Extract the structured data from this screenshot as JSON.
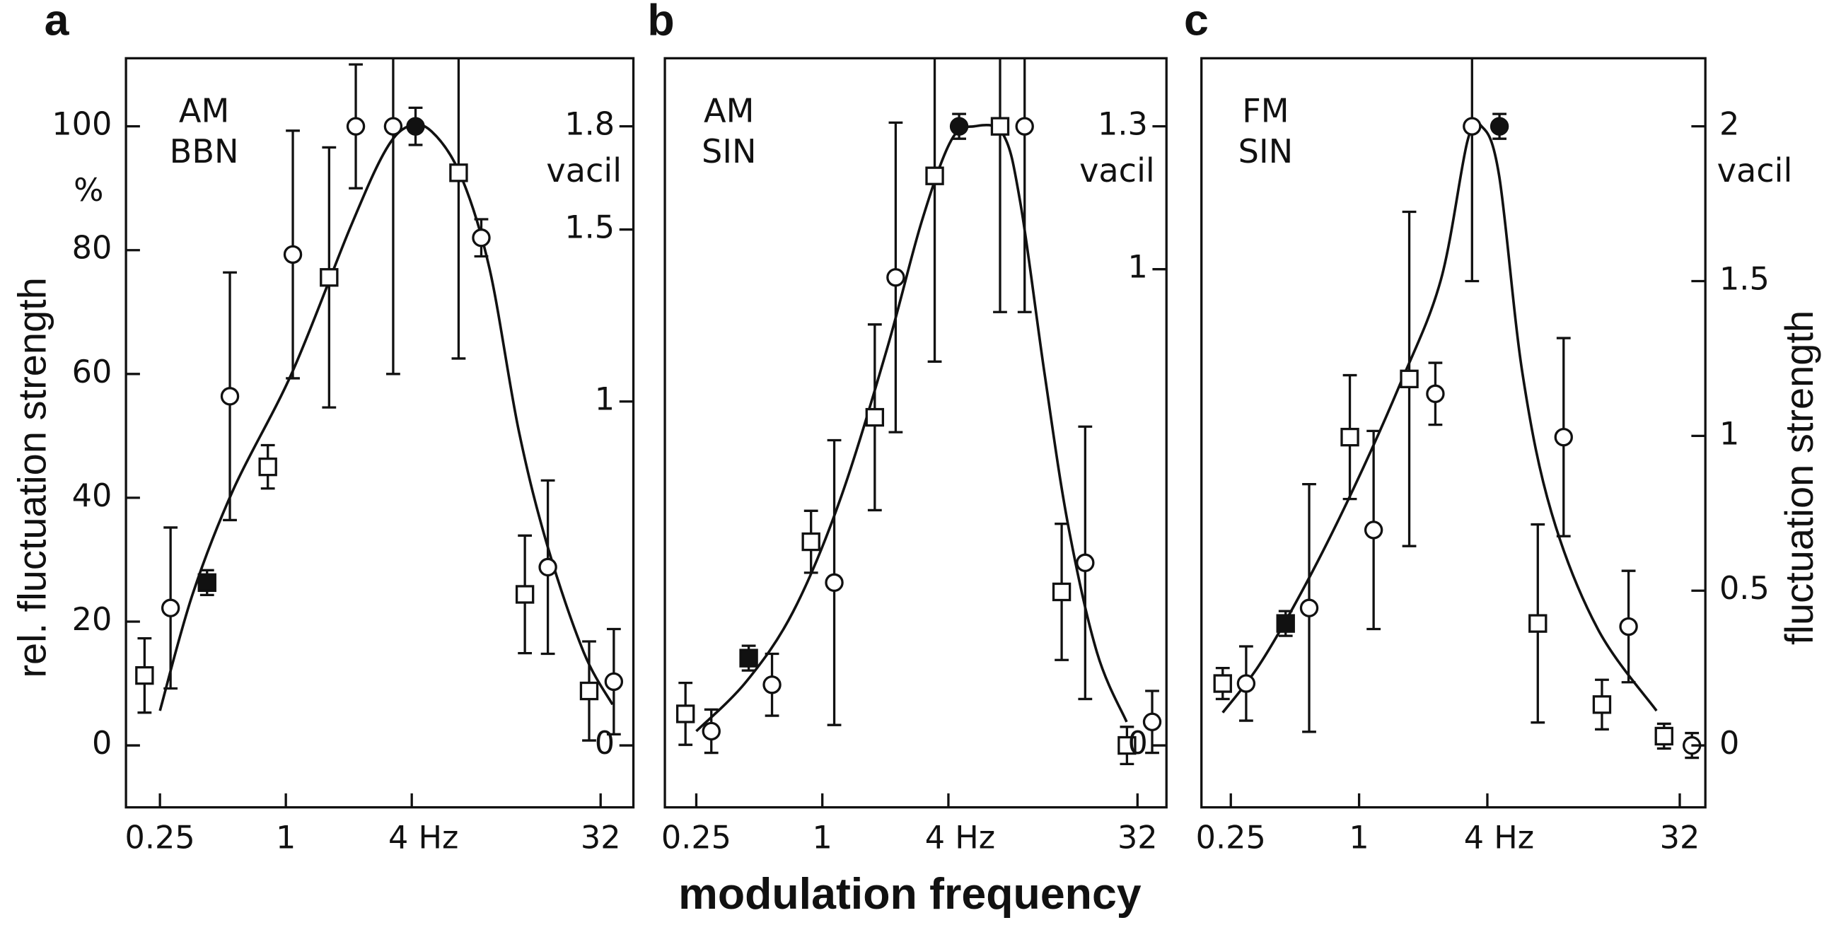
{
  "figure": {
    "ylabel": "rel. fluctuation strength",
    "yunit": "%",
    "y2label": "fluctuation strength",
    "xlabel": "modulation frequency"
  },
  "chart_data": [
    {
      "type": "scatter",
      "label": "a",
      "annotation": [
        "AM",
        "BBN"
      ],
      "xscale": "log",
      "color": "#111",
      "xlim": [
        0.172,
        45.9
      ],
      "ylim": [
        -10,
        111
      ],
      "y2lim": [
        -0.18,
        1.998
      ],
      "y2unit": "vacil",
      "xticks": [
        0.25,
        1,
        {
          "value": 4,
          "label": "4 Hz"
        },
        32
      ],
      "yticks": [
        0,
        20,
        40,
        60,
        80,
        100
      ],
      "y2ticks": [
        0,
        1,
        1.5,
        1.8
      ],
      "series": [
        {
          "marker": "circle",
          "filled": false,
          "x": [
            0.281,
            0.54,
            1.08,
            2.16,
            3.26,
            8.6,
            17.9,
            37
          ],
          "values": [
            22.2,
            56.4,
            79.3,
            100,
            100,
            82,
            28.8,
            10.3
          ],
          "errors": [
            13,
            20,
            20,
            10,
            40,
            3,
            14,
            8.5
          ]
        },
        {
          "marker": "square",
          "filled": false,
          "x": [
            0.211,
            0.82,
            1.61,
            6.7,
            13.9,
            28.2
          ],
          "values": [
            11.3,
            45,
            75.6,
            92.5,
            24.4,
            8.8
          ],
          "errors": [
            6,
            3.5,
            21,
            30,
            9.5,
            8
          ]
        },
        {
          "marker": "square",
          "filled": true,
          "x": [
            0.42
          ],
          "values": [
            26.3
          ],
          "errors": [
            2
          ]
        },
        {
          "marker": "circle",
          "filled": true,
          "x": [
            4.17
          ],
          "values": [
            100
          ],
          "errors": [
            3
          ]
        }
      ],
      "curve": {
        "x": [
          0.25,
          0.358,
          0.562,
          1.07,
          2.03,
          2.97,
          3.84,
          4.97,
          6.85,
          9.42,
          13.0,
          17.9,
          26.6,
          36.5
        ],
        "values": [
          5.6,
          24.4,
          41.4,
          60.2,
          83.6,
          95.9,
          100,
          99.2,
          92.1,
          77,
          50.8,
          32,
          15,
          6.6
        ]
      }
    },
    {
      "type": "scatter",
      "label": "b",
      "annotation": [
        "AM",
        "SIN"
      ],
      "xscale": "log",
      "color": "#111",
      "xlim": [
        0.177,
        44
      ],
      "ylim": [
        -10,
        111
      ],
      "y2lim": [
        -0.13,
        1.443
      ],
      "y2unit": "vacil",
      "xticks": [
        0.25,
        1,
        {
          "value": 4,
          "label": "4 Hz"
        },
        32
      ],
      "y2ticks": [
        0,
        1,
        1.3
      ],
      "series": [
        {
          "marker": "circle",
          "filled": false,
          "x": [
            0.295,
            0.575,
            1.14,
            2.24,
            9.25,
            18,
            37.6
          ],
          "values": [
            2.3,
            9.8,
            26.3,
            75.6,
            100,
            29.5,
            3.8
          ],
          "errors": [
            3.5,
            5,
            23,
            25,
            30,
            22,
            5
          ]
        },
        {
          "marker": "square",
          "filled": false,
          "x": [
            0.222,
            0.883,
            1.78,
            3.44,
            7.06,
            13.9,
            28.5
          ],
          "values": [
            5.1,
            32.9,
            53,
            92,
            100,
            24.8,
            0
          ],
          "errors": [
            5,
            5,
            15,
            30,
            30,
            11,
            3
          ]
        },
        {
          "marker": "square",
          "filled": true,
          "x": [
            0.445
          ],
          "values": [
            14.1
          ],
          "errors": [
            2
          ]
        },
        {
          "marker": "circle",
          "filled": true,
          "x": [
            4.5
          ],
          "values": [
            100
          ],
          "errors": [
            2
          ]
        }
      ],
      "curve": {
        "x": [
          0.25,
          0.433,
          0.725,
          1.21,
          2.03,
          2.98,
          4.12,
          5.3,
          7.3,
          8.85,
          11.5,
          14.9,
          20.5,
          28.4
        ],
        "values": [
          2.3,
          10.3,
          21.6,
          39.5,
          63.9,
          84.6,
          97.7,
          100,
          98.7,
          87.4,
          60.2,
          35.7,
          15,
          3.8
        ]
      }
    },
    {
      "type": "scatter",
      "label": "c",
      "annotation": [
        "FM",
        "SIN"
      ],
      "xscale": "log",
      "color": "#111",
      "xlim": [
        0.182,
        42.2
      ],
      "ylim": [
        -10,
        111
      ],
      "y2lim": [
        -0.2,
        2.22
      ],
      "y2unit": "vacil",
      "xticks": [
        0.25,
        1,
        {
          "value": 4,
          "label": "4 Hz"
        },
        32
      ],
      "y2ticks": [
        0,
        0.5,
        1,
        1.5,
        2
      ],
      "series": [
        {
          "marker": "circle",
          "filled": false,
          "x": [
            0.295,
            0.583,
            1.17,
            2.28,
            3.39,
            9.12,
            18.4,
            36.5
          ],
          "values": [
            10,
            22.2,
            34.8,
            56.8,
            100,
            49.8,
            19.2,
            0
          ],
          "errors": [
            6,
            20,
            16,
            5,
            25,
            16,
            9,
            2
          ]
        },
        {
          "marker": "square",
          "filled": false,
          "x": [
            0.229,
            0.905,
            1.72,
            6.9,
            13.8,
            27
          ],
          "values": [
            10,
            49.8,
            59.2,
            19.7,
            6.6,
            1.5
          ],
          "errors": [
            2.5,
            10,
            27,
            16,
            4,
            2
          ]
        },
        {
          "marker": "square",
          "filled": true,
          "x": [
            0.452
          ],
          "values": [
            19.7
          ],
          "errors": [
            2
          ]
        },
        {
          "marker": "circle",
          "filled": true,
          "x": [
            4.56
          ],
          "values": [
            100
          ],
          "errors": [
            2
          ]
        }
      ],
      "curve": {
        "x": [
          0.229,
          0.343,
          0.567,
          0.939,
          1.555,
          2.42,
          3.23,
          3.76,
          4.54,
          5.84,
          8,
          13.2,
          24.9
        ],
        "values": [
          5.3,
          13.2,
          26.3,
          41.4,
          58.3,
          75.2,
          97.7,
          100,
          92.1,
          60.2,
          37.6,
          18.8,
          5.6
        ]
      }
    }
  ]
}
